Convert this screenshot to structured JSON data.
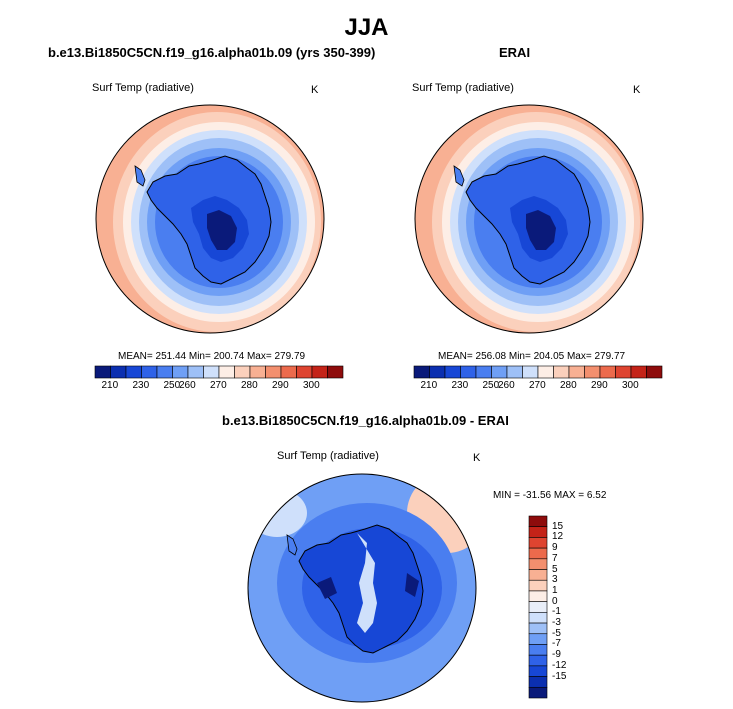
{
  "figure": {
    "title": "JJA"
  },
  "panels": [
    {
      "title": "b.e13.Bi1850C5CN.f19_g16.alpha01b.09 (yrs 350-399)",
      "variable": "Surf Temp (radiative)",
      "units": "K",
      "stats": "MEAN= 251.44   Min= 200.74   Max= 279.79"
    },
    {
      "title": "ERAI",
      "variable": "Surf Temp (radiative)",
      "units": "K",
      "stats": "MEAN= 256.08   Min= 204.05   Max= 279.77"
    },
    {
      "title": "b.e13.Bi1850C5CN.f19_g16.alpha01b.09 - ERAI",
      "variable": "Surf Temp (radiative)",
      "units": "K",
      "stats": "MIN = -31.56 MAX =   6.52"
    }
  ],
  "abs_colorbar": {
    "tick_labels": [
      "210",
      "230",
      "250",
      "260",
      "270",
      "280",
      "290",
      "300"
    ],
    "colors": [
      "#0a1a7a",
      "#0b2fb0",
      "#1747d6",
      "#2f62e8",
      "#4a7ef0",
      "#6f9ff5",
      "#9ec0f7",
      "#cfe0fb",
      "#fdeee6",
      "#fbd0bc",
      "#f8b093",
      "#f38f6e",
      "#ec6a4c",
      "#de4430",
      "#c42318",
      "#8e0c0c"
    ]
  },
  "diff_colorbar": {
    "tick_labels": [
      "15",
      "12",
      "9",
      "7",
      "5",
      "3",
      "1",
      "0",
      "-1",
      "-3",
      "-5",
      "-7",
      "-9",
      "-12",
      "-15"
    ],
    "colors": [
      "#8e0c0c",
      "#c42318",
      "#de4430",
      "#ec6a4c",
      "#f38f6e",
      "#f8b093",
      "#fbd0bc",
      "#fdeee6",
      "#e9eef8",
      "#cfe0fb",
      "#9ec0f7",
      "#6f9ff5",
      "#4a7ef0",
      "#2f62e8",
      "#1747d6",
      "#0b2fb0",
      "#0a1a7a"
    ]
  },
  "colors": {
    "coast": "#000000",
    "ocean_warm": "#f8b093",
    "ice_edge": "#cfe0fb"
  }
}
